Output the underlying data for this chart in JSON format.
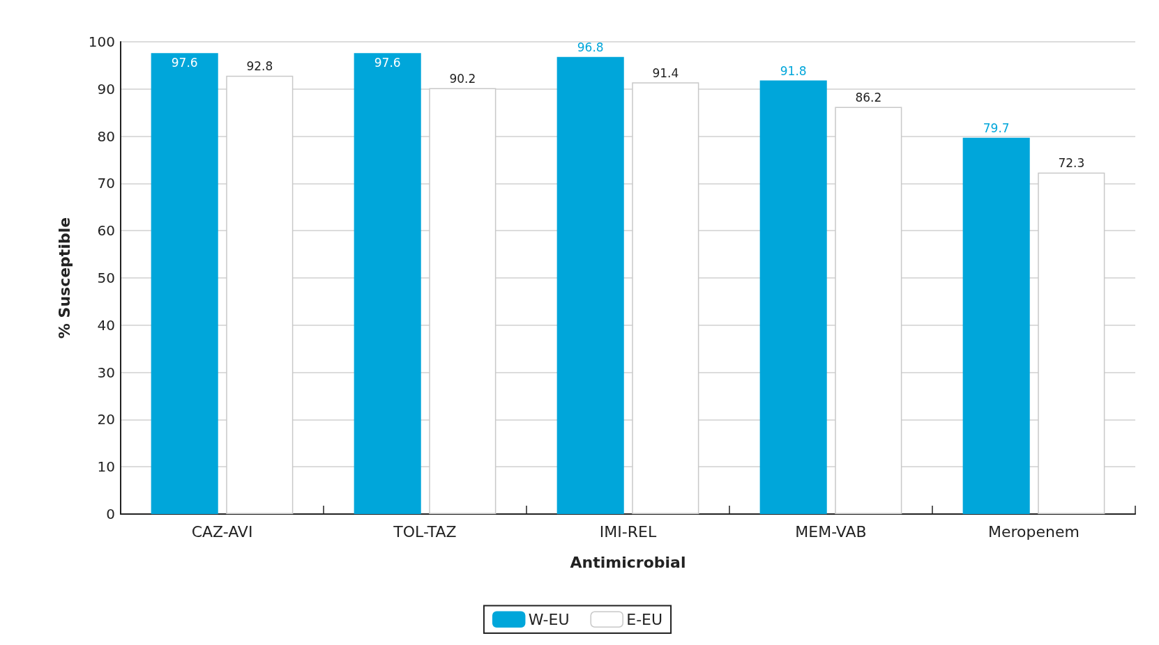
{
  "chart_data": {
    "type": "bar",
    "xlabel": "Antimicrobial",
    "ylabel": "% Susceptible",
    "categories": [
      "CAZ-AVI",
      "TOL-TAZ",
      "IMI-REL",
      "MEM-VAB",
      "Meropenem"
    ],
    "series": [
      {
        "name": "W-EU",
        "color": "#00a6da",
        "values": [
          97.6,
          97.6,
          96.8,
          91.8,
          79.7
        ]
      },
      {
        "name": "E-EU",
        "color": "#ffffff",
        "values": [
          92.8,
          90.2,
          91.4,
          86.2,
          72.3
        ]
      }
    ],
    "ylim": [
      0,
      100
    ],
    "yticks": [
      0,
      10,
      20,
      30,
      40,
      50,
      60,
      70,
      80,
      90,
      100
    ],
    "grid": "y",
    "legend": "bottom",
    "data_labels": true
  }
}
